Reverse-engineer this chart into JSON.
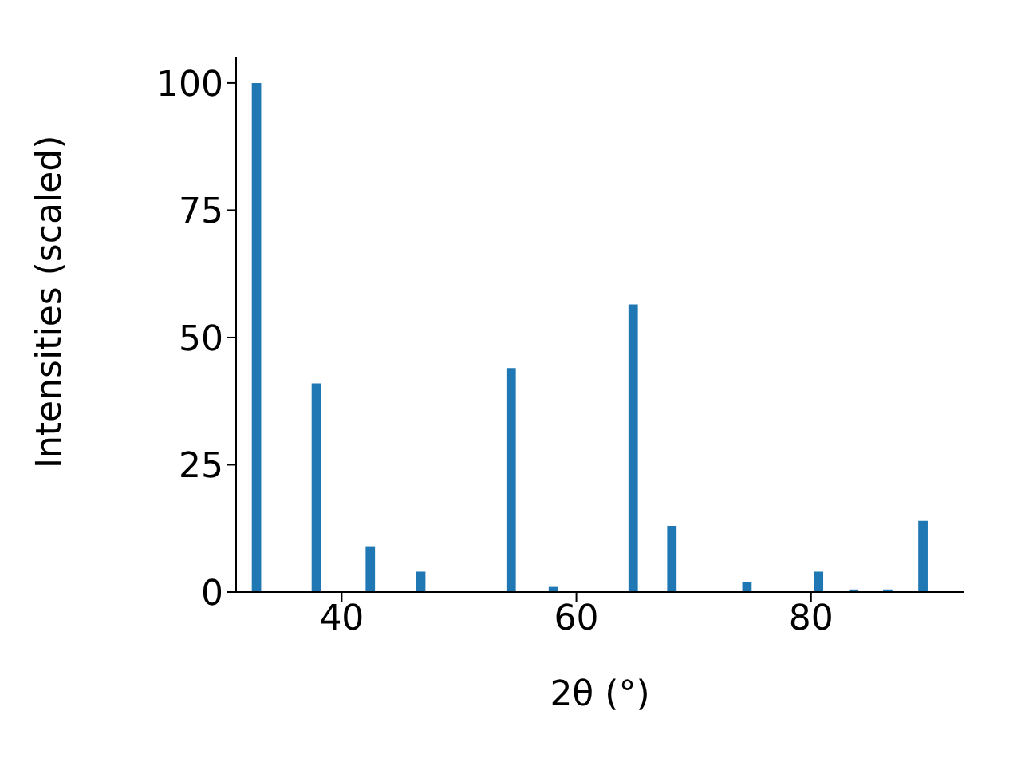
{
  "chart_data": {
    "type": "bar",
    "xlabel": "2θ (°)",
    "ylabel": "Intensities (scaled)",
    "x": [
      32.7,
      37.8,
      42.4,
      46.7,
      54.4,
      58.0,
      64.8,
      68.1,
      74.5,
      80.6,
      83.6,
      86.5,
      89.5
    ],
    "values": [
      100,
      41,
      9,
      4,
      44,
      1,
      56.5,
      13,
      2,
      4,
      0.5,
      0.5,
      14
    ],
    "color": "#1f77b4",
    "xlim": [
      31,
      93
    ],
    "xticks": [
      40,
      60,
      80
    ],
    "ylim": [
      0,
      105
    ],
    "yticks": [
      0,
      25,
      50,
      75,
      100
    ],
    "grid": false,
    "legend": false
  }
}
